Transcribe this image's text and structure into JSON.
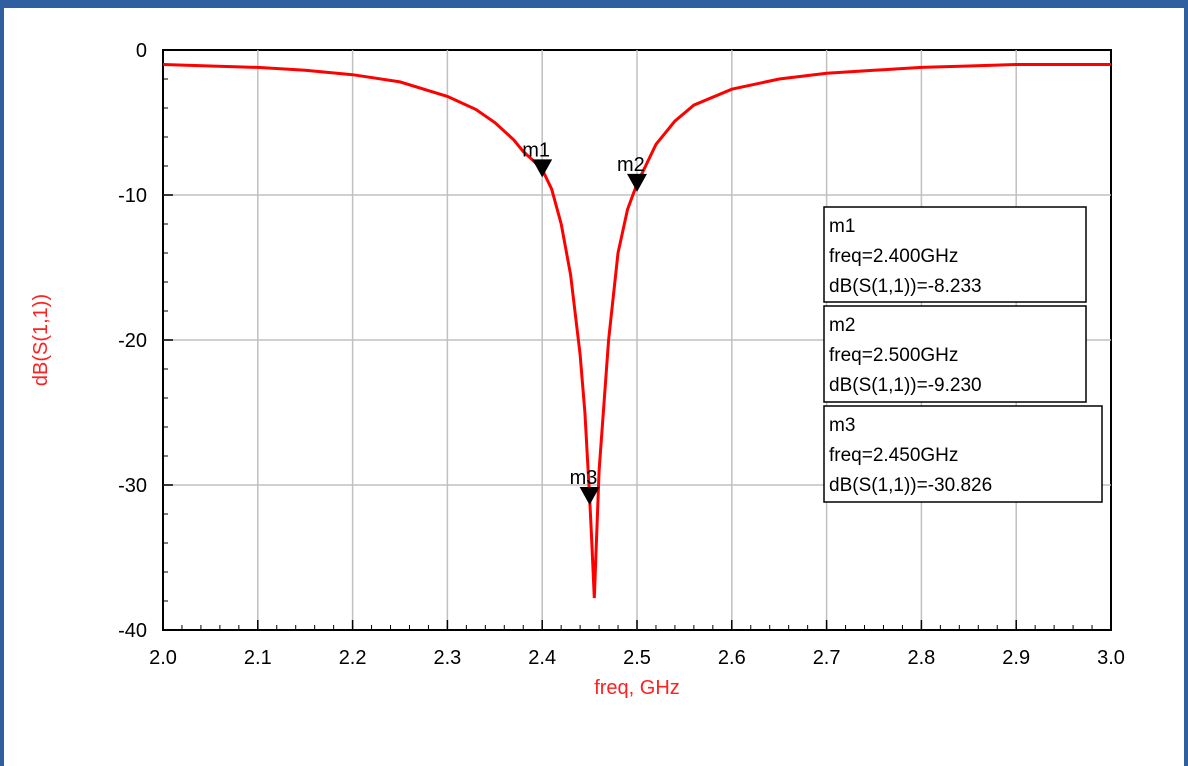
{
  "colors": {
    "curve": "#ff0000",
    "axis_title": "#ff2020",
    "grid": "#c0c0c0",
    "frame": "#2f5f9f"
  },
  "chart_data": {
    "type": "line",
    "title": "",
    "xlabel": "freq, GHz",
    "ylabel": "dB(S(1,1))",
    "xlim": [
      2.0,
      3.0
    ],
    "ylim": [
      -40,
      0
    ],
    "grid": true,
    "x_ticks": [
      "2.0",
      "2.1",
      "2.2",
      "2.3",
      "2.4",
      "2.5",
      "2.6",
      "2.7",
      "2.8",
      "2.9",
      "3.0"
    ],
    "y_ticks": [
      "0",
      "-10",
      "-20",
      "-30",
      "-40"
    ],
    "series": [
      {
        "x": [
          2.0,
          2.05,
          2.1,
          2.15,
          2.2,
          2.25,
          2.3,
          2.33,
          2.35,
          2.37,
          2.38,
          2.39,
          2.4,
          2.41,
          2.42,
          2.43,
          2.44,
          2.445,
          2.45,
          2.452,
          2.455,
          2.46,
          2.47,
          2.48,
          2.49,
          2.5,
          2.52,
          2.54,
          2.56,
          2.6,
          2.65,
          2.7,
          2.75,
          2.8,
          2.85,
          2.9,
          2.95,
          3.0
        ],
        "y": [
          -1.0,
          -1.1,
          -1.2,
          -1.4,
          -1.7,
          -2.2,
          -3.2,
          -4.1,
          -5.0,
          -6.2,
          -7.0,
          -7.6,
          -8.233,
          -9.6,
          -12.0,
          -15.5,
          -21.0,
          -25.0,
          -30.826,
          -33.5,
          -37.8,
          -29.0,
          -20.0,
          -14.0,
          -11.0,
          -9.23,
          -6.5,
          -4.9,
          -3.8,
          -2.7,
          -2.0,
          -1.6,
          -1.4,
          -1.2,
          -1.1,
          -1.0,
          -1.0,
          -1.0
        ]
      }
    ],
    "markers": [
      {
        "name": "m1",
        "x": 2.4,
        "y": -8.233,
        "freq": "freq=2.400GHz",
        "value": "dB(S(1,1))=-8.233"
      },
      {
        "name": "m2",
        "x": 2.5,
        "y": -9.23,
        "freq": "freq=2.500GHz",
        "value": "dB(S(1,1))=-9.230"
      },
      {
        "name": "m3",
        "x": 2.45,
        "y": -30.826,
        "freq": "freq=2.450GHz",
        "value": "dB(S(1,1))=-30.826"
      }
    ]
  }
}
